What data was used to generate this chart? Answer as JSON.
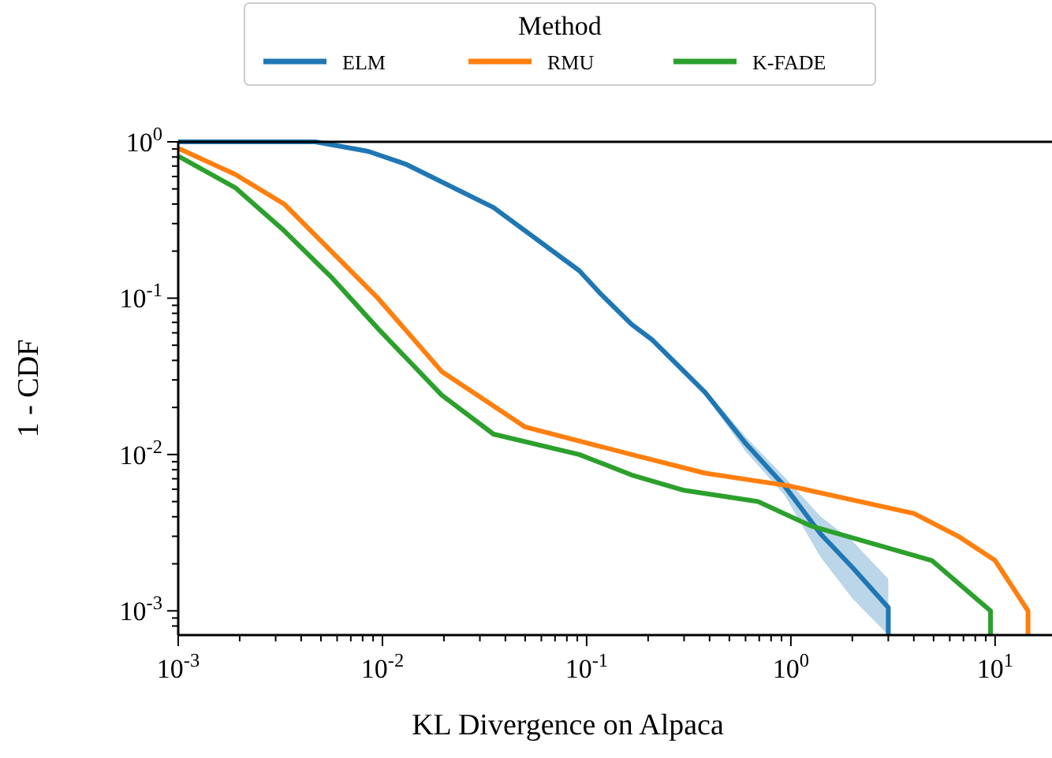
{
  "chart_data": {
    "type": "line",
    "xlabel": "KL Divergence on Alpaca",
    "ylabel": "1 - CDF",
    "legend_title": "Method",
    "legend": "top",
    "log": "xy",
    "grid": false,
    "line_style": "solid",
    "xlim": [
      0.001,
      19
    ],
    "ylim": [
      0.0007,
      1
    ],
    "xticks": [
      {
        "value": 0.001,
        "label": "10$^{-3}$"
      },
      {
        "value": 0.002,
        "label": null
      },
      {
        "value": 0.003,
        "label": null
      },
      {
        "value": 0.004,
        "label": null
      },
      {
        "value": 0.005,
        "label": null
      },
      {
        "value": 0.006,
        "label": null
      },
      {
        "value": 0.007,
        "label": null
      },
      {
        "value": 0.008,
        "label": null
      },
      {
        "value": 0.009,
        "label": null
      },
      {
        "value": 0.01,
        "label": "10$^{-2}$"
      },
      {
        "value": 0.02,
        "label": null
      },
      {
        "value": 0.03,
        "label": null
      },
      {
        "value": 0.04,
        "label": null
      },
      {
        "value": 0.05,
        "label": null
      },
      {
        "value": 0.06,
        "label": null
      },
      {
        "value": 0.07,
        "label": null
      },
      {
        "value": 0.08,
        "label": null
      },
      {
        "value": 0.09,
        "label": null
      },
      {
        "value": 0.1,
        "label": "10$^{-1}$"
      },
      {
        "value": 0.2,
        "label": null
      },
      {
        "value": 0.3,
        "label": null
      },
      {
        "value": 0.4,
        "label": null
      },
      {
        "value": 0.5,
        "label": null
      },
      {
        "value": 0.6,
        "label": null
      },
      {
        "value": 0.7,
        "label": null
      },
      {
        "value": 0.8,
        "label": null
      },
      {
        "value": 0.9,
        "label": null
      },
      {
        "value": 1,
        "label": "10$^{0}$"
      },
      {
        "value": 2,
        "label": null
      },
      {
        "value": 3,
        "label": null
      },
      {
        "value": 4,
        "label": null
      },
      {
        "value": 5,
        "label": null
      },
      {
        "value": 6,
        "label": null
      },
      {
        "value": 7,
        "label": null
      },
      {
        "value": 8,
        "label": null
      },
      {
        "value": 9,
        "label": null
      },
      {
        "value": 10,
        "label": "10$^{1}$"
      }
    ],
    "yticks": [
      {
        "value": 0.0008,
        "label": null
      },
      {
        "value": 0.0009,
        "label": null
      },
      {
        "value": 0.001,
        "label": "10$^{-3}$"
      },
      {
        "value": 0.002,
        "label": null
      },
      {
        "value": 0.003,
        "label": null
      },
      {
        "value": 0.004,
        "label": null
      },
      {
        "value": 0.005,
        "label": null
      },
      {
        "value": 0.006,
        "label": null
      },
      {
        "value": 0.007,
        "label": null
      },
      {
        "value": 0.008,
        "label": null
      },
      {
        "value": 0.009,
        "label": null
      },
      {
        "value": 0.01,
        "label": "10$^{-2}$"
      },
      {
        "value": 0.02,
        "label": null
      },
      {
        "value": 0.03,
        "label": null
      },
      {
        "value": 0.04,
        "label": null
      },
      {
        "value": 0.05,
        "label": null
      },
      {
        "value": 0.06,
        "label": null
      },
      {
        "value": 0.07,
        "label": null
      },
      {
        "value": 0.08,
        "label": null
      },
      {
        "value": 0.09,
        "label": null
      },
      {
        "value": 0.1,
        "label": "10$^{-1}$"
      },
      {
        "value": 0.2,
        "label": null
      },
      {
        "value": 0.3,
        "label": null
      },
      {
        "value": 0.4,
        "label": null
      },
      {
        "value": 0.5,
        "label": null
      },
      {
        "value": 0.6,
        "label": null
      },
      {
        "value": 0.7,
        "label": null
      },
      {
        "value": 0.8,
        "label": null
      },
      {
        "value": 0.9,
        "label": null
      },
      {
        "value": 1,
        "label": "10$^{0}$"
      }
    ],
    "series": [
      {
        "name": "ELM",
        "color": "#1f77b4",
        "x": [
          0.001,
          0.0047,
          0.0085,
          0.013,
          0.035,
          0.092,
          0.116,
          0.166,
          0.21,
          0.38,
          0.6,
          0.93,
          1.4,
          2.0,
          3.0,
          3.0
        ],
        "values": [
          1,
          1,
          0.87,
          0.72,
          0.38,
          0.15,
          0.108,
          0.068,
          0.054,
          0.025,
          0.0118,
          0.0063,
          0.0031,
          0.0019,
          0.00105,
          0.0007
        ],
        "lower": [
          1,
          1,
          0.87,
          0.72,
          0.38,
          0.15,
          0.108,
          0.068,
          0.054,
          0.024,
          0.0105,
          0.0055,
          0.0022,
          0.0012,
          0.0007,
          0.0007
        ],
        "upper": [
          1,
          1,
          0.87,
          0.72,
          0.38,
          0.15,
          0.108,
          0.068,
          0.054,
          0.026,
          0.013,
          0.0072,
          0.004,
          0.0028,
          0.0016,
          0.0016
        ]
      },
      {
        "name": "RMU",
        "color": "#ff7f0e",
        "x": [
          0.001,
          0.0019,
          0.0033,
          0.0056,
          0.0095,
          0.0195,
          0.05,
          0.166,
          0.38,
          0.98,
          4.0,
          6.6,
          10,
          14.5,
          14.5
        ],
        "values": [
          0.91,
          0.62,
          0.4,
          0.2,
          0.1,
          0.034,
          0.015,
          0.01,
          0.0076,
          0.0063,
          0.0042,
          0.003,
          0.0021,
          0.001,
          0.0007
        ]
      },
      {
        "name": "K-FADE",
        "color": "#2ca02c",
        "x": [
          0.001,
          0.0019,
          0.0033,
          0.0056,
          0.0095,
          0.0195,
          0.035,
          0.092,
          0.166,
          0.3,
          0.69,
          1.25,
          4.9,
          9.5,
          9.5
        ],
        "values": [
          0.81,
          0.51,
          0.27,
          0.137,
          0.064,
          0.024,
          0.0135,
          0.01,
          0.0074,
          0.0059,
          0.005,
          0.0035,
          0.0021,
          0.001,
          0.0007
        ]
      }
    ]
  }
}
